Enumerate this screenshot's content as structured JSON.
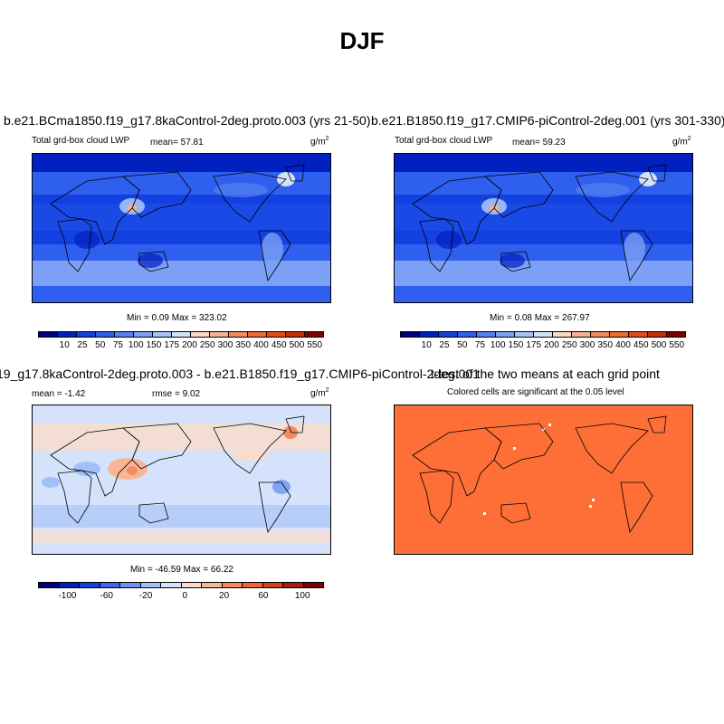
{
  "title": "DJF",
  "panels": [
    {
      "title": "b.e21.BCma1850.f19_g17.8kaControl-2deg.proto.003 (yrs 21-50)",
      "subtitle": "Total grd-box cloud LWP",
      "mean": "mean=  57.81",
      "units": "g/m",
      "units_exp": "2",
      "minmax": "Min =   0.09 Max = 323.02",
      "colorbar": {
        "colors": [
          "#00007f",
          "#0020c0",
          "#1340e0",
          "#2e5fef",
          "#5580f2",
          "#7ba0f5",
          "#a6c2f8",
          "#d3e2fb",
          "#fbd9c7",
          "#f7b191",
          "#f28a5e",
          "#ee6a30",
          "#e64a14",
          "#c62a0a",
          "#7f0000"
        ],
        "labels": [
          "10",
          "25",
          "50",
          "75",
          "100",
          "150",
          "175",
          "200",
          "250",
          "300",
          "350",
          "400",
          "450",
          "500",
          "550"
        ]
      }
    },
    {
      "title": "b.e21.B1850.f19_g17.CMIP6-piControl-2deg.001 (yrs 301-330)",
      "subtitle": "Total grd-box cloud LWP",
      "mean": "mean=  59.23",
      "units": "g/m",
      "units_exp": "2",
      "minmax": "Min =   0.08 Max = 267.97",
      "colorbar": {
        "colors": [
          "#00007f",
          "#0020c0",
          "#1340e0",
          "#2e5fef",
          "#5580f2",
          "#7ba0f5",
          "#a6c2f8",
          "#d3e2fb",
          "#fbd9c7",
          "#f7b191",
          "#f28a5e",
          "#ee6a30",
          "#e64a14",
          "#c62a0a",
          "#7f0000"
        ],
        "labels": [
          "10",
          "25",
          "50",
          "75",
          "100",
          "150",
          "175",
          "200",
          "250",
          "300",
          "350",
          "400",
          "450",
          "500",
          "550"
        ]
      }
    },
    {
      "title": "19_g17.8kaControl-2deg.proto.003 - b.e21.B1850.f19_g17.CMIP6-piControl-2deg.001",
      "mean": "mean =  -1.42",
      "rmse": "rmse =   9.02",
      "units": "g/m",
      "units_exp": "2",
      "minmax": "Min = -46.59 Max =  66.22",
      "colorbar": {
        "colors": [
          "#00007f",
          "#0020c0",
          "#1340e0",
          "#3a66f0",
          "#6d92f4",
          "#a3bff8",
          "#d4e3fb",
          "#fbdccb",
          "#f7b695",
          "#f28c60",
          "#ec6532",
          "#d4401a",
          "#a81c08",
          "#7f0000"
        ],
        "labels": [
          "-100",
          "-60",
          "-20",
          "0",
          "20",
          "60",
          "100"
        ]
      }
    },
    {
      "title": "t-test of the two means at each grid point",
      "subtitle": "Colored cells are significant at the 0.05 level",
      "fill": "#fd6f37"
    }
  ]
}
